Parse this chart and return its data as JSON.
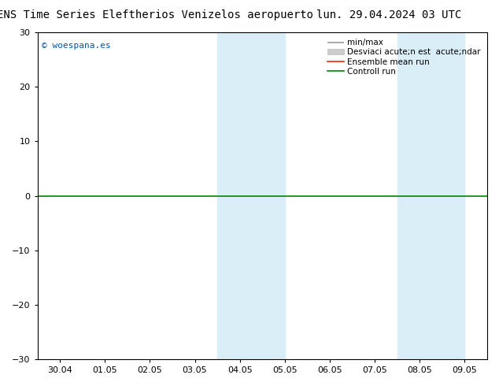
{
  "title_left": "ENS Time Series Eleftherios Venizelos aeropuerto",
  "title_right": "lun. 29.04.2024 03 UTC",
  "ylim": [
    -30,
    30
  ],
  "yticks": [
    -30,
    -20,
    -10,
    0,
    10,
    20,
    30
  ],
  "xtick_labels": [
    "30.04",
    "01.05",
    "02.05",
    "03.05",
    "04.05",
    "05.05",
    "06.05",
    "07.05",
    "08.05",
    "09.05"
  ],
  "xtick_positions": [
    0,
    1,
    2,
    3,
    4,
    5,
    6,
    7,
    8,
    9
  ],
  "shaded_bands": [
    [
      3.5,
      4.2
    ],
    [
      4.2,
      5.0
    ],
    [
      7.5,
      8.2
    ],
    [
      8.2,
      9.0
    ]
  ],
  "shaded_color": "#daeef8",
  "shaded_color2": "#cce5f5",
  "watermark": "© woespana.es",
  "watermark_color": "#0055aa",
  "hline_y": 0,
  "hline_color": "#008800",
  "legend_label0": "min/max",
  "legend_label1": "Desviaci acute;n est  acute;ndar",
  "legend_label2": "Ensemble mean run",
  "legend_label3": "Controll run",
  "legend_color0": "#999999",
  "legend_color1": "#cccccc",
  "legend_color2": "#ff2200",
  "legend_color3": "#008800",
  "bg_color": "#ffffff",
  "title_fontsize": 10,
  "tick_fontsize": 8,
  "legend_fontsize": 7.5
}
